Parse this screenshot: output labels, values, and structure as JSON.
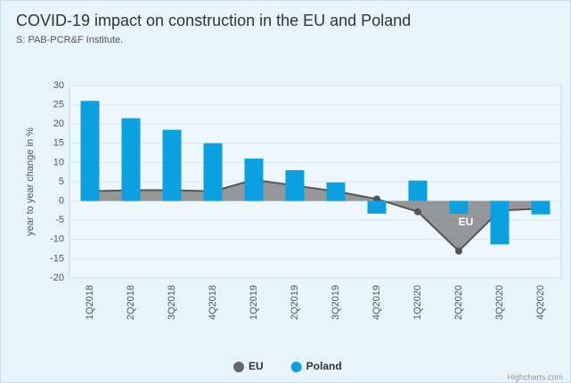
{
  "chart_data": {
    "type": "bar",
    "title": "COVID-19 impact on construction in the EU and Poland",
    "subtitle": "S: PAB-PCR&F Institute.",
    "y_label": "year to year change in %",
    "credits": "Highcharts.com",
    "categories": [
      "1Q2018",
      "2Q2018",
      "3Q2018",
      "4Q2018",
      "1Q2019",
      "2Q2019",
      "3Q2019",
      "4Q2019",
      "1Q2020",
      "2Q2020",
      "3Q2020",
      "4Q2020"
    ],
    "series": [
      {
        "name": "EU",
        "type": "area",
        "color": "#777777",
        "values": [
          2.5,
          2.8,
          2.8,
          2.5,
          5.5,
          4,
          2.5,
          0.5,
          -2.8,
          -13,
          -2.5,
          -2
        ]
      },
      {
        "name": "Poland",
        "type": "bar",
        "color": "#0ba0e0",
        "values": [
          26,
          21.5,
          18.5,
          15,
          11,
          8,
          4.8,
          -3.3,
          5.3,
          -3.3,
          -11.3,
          -3.5
        ]
      }
    ],
    "ylim": [
      -20,
      30
    ],
    "yticks": [
      -20,
      -15,
      -10,
      -5,
      0,
      5,
      10,
      15,
      20,
      25,
      30
    ],
    "grid": true,
    "legend": "bottom"
  }
}
